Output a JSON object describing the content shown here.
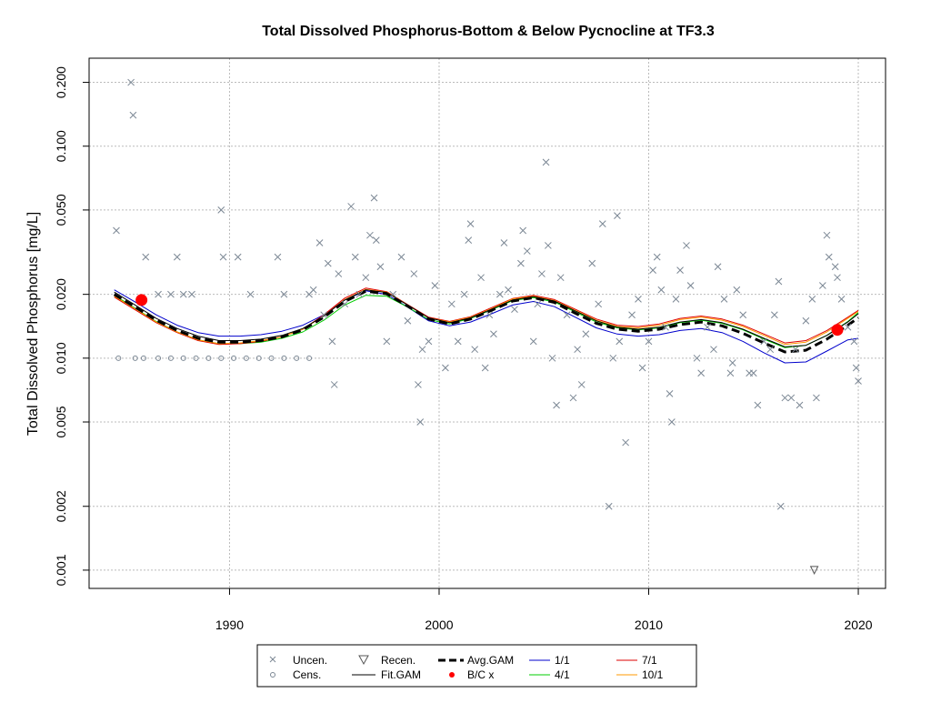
{
  "chart_data": {
    "type": "scatter",
    "title": "Total Dissolved Phosphorus-Bottom & Below Pycnocline at TF3.3",
    "xlabel": "",
    "ylabel": "Total Dissolved Phosphorus [mg/L]",
    "y_scale": "log",
    "xlim": [
      1983.3,
      2021.3
    ],
    "ylim": [
      0.00082,
      0.26
    ],
    "x_ticks": [
      1990,
      2000,
      2010,
      2020
    ],
    "x_tick_labels": [
      "1990",
      "2000",
      "2010",
      "2020"
    ],
    "y_ticks": [
      0.001,
      0.002,
      0.005,
      0.01,
      0.02,
      0.05,
      0.1,
      0.2
    ],
    "y_tick_labels": [
      "0.001",
      "0.002",
      "0.005",
      "0.010",
      "0.020",
      "0.050",
      "0.100",
      "0.200"
    ],
    "grid": true,
    "legend_placement": "bottom-center",
    "colors": {
      "uncensored": "#7b8794",
      "censored": "#7b8794",
      "recensored": "#7b8794",
      "fit_gam": "#000000",
      "avg_gam": "#000000",
      "bc_points": "#ff0000",
      "s_1_1": "#0000cc",
      "s_4_1": "#00cc00",
      "s_7_1": "#dd0000",
      "s_10_1": "#ff9900",
      "grid": "#bbbbbb"
    },
    "legend": {
      "uncen": "Uncen.",
      "cens": "Cens.",
      "recen": "Recen.",
      "fitgam": "Fit.GAM",
      "avggam": "Avg.GAM",
      "bc": "B/C x",
      "s11": "1/1",
      "s41": "4/1",
      "s71": "7/1",
      "s101": "10/1"
    },
    "series": [
      {
        "name": "Uncen.",
        "marker": "x",
        "points": [
          [
            1984.6,
            0.04
          ],
          [
            1985.3,
            0.2
          ],
          [
            1985.4,
            0.14
          ],
          [
            1986.0,
            0.03
          ],
          [
            1986.6,
            0.02
          ],
          [
            1987.2,
            0.02
          ],
          [
            1987.5,
            0.03
          ],
          [
            1987.8,
            0.02
          ],
          [
            1988.2,
            0.02
          ],
          [
            1989.6,
            0.05
          ],
          [
            1989.7,
            0.03
          ],
          [
            1990.4,
            0.03
          ],
          [
            1991.0,
            0.02
          ],
          [
            1992.3,
            0.03
          ],
          [
            1992.6,
            0.02
          ],
          [
            1993.8,
            0.02
          ],
          [
            1994.0,
            0.021
          ],
          [
            1994.3,
            0.035
          ],
          [
            1994.5,
            0.016
          ],
          [
            1994.7,
            0.028
          ],
          [
            1994.9,
            0.012
          ],
          [
            1995.0,
            0.0075
          ],
          [
            1995.2,
            0.025
          ],
          [
            1995.5,
            0.018
          ],
          [
            1995.8,
            0.052
          ],
          [
            1996.0,
            0.03
          ],
          [
            1996.2,
            0.02
          ],
          [
            1996.5,
            0.024
          ],
          [
            1996.7,
            0.038
          ],
          [
            1996.9,
            0.057
          ],
          [
            1997.0,
            0.036
          ],
          [
            1997.2,
            0.027
          ],
          [
            1997.5,
            0.012
          ],
          [
            1997.8,
            0.02
          ],
          [
            1998.2,
            0.03
          ],
          [
            1998.5,
            0.015
          ],
          [
            1998.8,
            0.025
          ],
          [
            1999.0,
            0.0075
          ],
          [
            1999.1,
            0.005
          ],
          [
            1999.2,
            0.011
          ],
          [
            1999.5,
            0.012
          ],
          [
            1999.8,
            0.022
          ],
          [
            2000.3,
            0.009
          ],
          [
            2000.6,
            0.018
          ],
          [
            2000.9,
            0.012
          ],
          [
            2001.2,
            0.02
          ],
          [
            2001.4,
            0.036
          ],
          [
            2001.5,
            0.043
          ],
          [
            2001.7,
            0.011
          ],
          [
            2002.0,
            0.024
          ],
          [
            2002.2,
            0.009
          ],
          [
            2002.4,
            0.016
          ],
          [
            2002.6,
            0.013
          ],
          [
            2002.9,
            0.02
          ],
          [
            2003.1,
            0.035
          ],
          [
            2003.3,
            0.021
          ],
          [
            2003.6,
            0.017
          ],
          [
            2003.9,
            0.028
          ],
          [
            2004.0,
            0.04
          ],
          [
            2004.2,
            0.032
          ],
          [
            2004.5,
            0.012
          ],
          [
            2004.7,
            0.018
          ],
          [
            2004.9,
            0.025
          ],
          [
            2005.1,
            0.084
          ],
          [
            2005.2,
            0.034
          ],
          [
            2005.4,
            0.01
          ],
          [
            2005.6,
            0.006
          ],
          [
            2005.8,
            0.024
          ],
          [
            2006.1,
            0.016
          ],
          [
            2006.4,
            0.0065
          ],
          [
            2006.6,
            0.011
          ],
          [
            2006.8,
            0.0075
          ],
          [
            2007.0,
            0.013
          ],
          [
            2007.3,
            0.028
          ],
          [
            2007.6,
            0.018
          ],
          [
            2007.8,
            0.043
          ],
          [
            2008.1,
            0.002
          ],
          [
            2008.3,
            0.01
          ],
          [
            2008.5,
            0.047
          ],
          [
            2008.6,
            0.012
          ],
          [
            2008.9,
            0.004
          ],
          [
            2009.2,
            0.016
          ],
          [
            2009.5,
            0.019
          ],
          [
            2009.7,
            0.009
          ],
          [
            2010.0,
            0.012
          ],
          [
            2010.2,
            0.026
          ],
          [
            2010.4,
            0.03
          ],
          [
            2010.6,
            0.021
          ],
          [
            2010.8,
            0.014
          ],
          [
            2011.0,
            0.0068
          ],
          [
            2011.1,
            0.005
          ],
          [
            2011.3,
            0.019
          ],
          [
            2011.5,
            0.026
          ],
          [
            2011.8,
            0.034
          ],
          [
            2012.0,
            0.022
          ],
          [
            2012.3,
            0.01
          ],
          [
            2012.5,
            0.0085
          ],
          [
            2012.8,
            0.014
          ],
          [
            2013.1,
            0.011
          ],
          [
            2013.3,
            0.027
          ],
          [
            2013.6,
            0.019
          ],
          [
            2013.9,
            0.0085
          ],
          [
            2014.0,
            0.0095
          ],
          [
            2014.2,
            0.021
          ],
          [
            2014.5,
            0.016
          ],
          [
            2014.8,
            0.0085
          ],
          [
            2015.0,
            0.0085
          ],
          [
            2015.2,
            0.006
          ],
          [
            2015.5,
            0.012
          ],
          [
            2015.8,
            0.011
          ],
          [
            2016.0,
            0.016
          ],
          [
            2016.2,
            0.023
          ],
          [
            2016.3,
            0.002
          ],
          [
            2016.5,
            0.0065
          ],
          [
            2016.8,
            0.0065
          ],
          [
            2017.0,
            0.011
          ],
          [
            2017.2,
            0.006
          ],
          [
            2017.5,
            0.015
          ],
          [
            2017.8,
            0.019
          ],
          [
            2018.0,
            0.0065
          ],
          [
            2018.3,
            0.022
          ],
          [
            2018.5,
            0.038
          ],
          [
            2018.6,
            0.03
          ],
          [
            2018.9,
            0.027
          ],
          [
            2019.0,
            0.024
          ],
          [
            2019.2,
            0.019
          ],
          [
            2019.5,
            0.014
          ],
          [
            2019.8,
            0.012
          ],
          [
            2019.9,
            0.009
          ],
          [
            2020.0,
            0.0078
          ]
        ]
      },
      {
        "name": "Cens.",
        "marker": "circle-open",
        "points": [
          [
            1984.7,
            0.01
          ],
          [
            1985.5,
            0.01
          ],
          [
            1985.9,
            0.01
          ],
          [
            1986.6,
            0.01
          ],
          [
            1987.2,
            0.01
          ],
          [
            1987.8,
            0.01
          ],
          [
            1988.4,
            0.01
          ],
          [
            1989.0,
            0.01
          ],
          [
            1989.6,
            0.01
          ],
          [
            1990.2,
            0.01
          ],
          [
            1990.8,
            0.01
          ],
          [
            1991.4,
            0.01
          ],
          [
            1992.0,
            0.01
          ],
          [
            1992.6,
            0.01
          ],
          [
            1993.2,
            0.01
          ],
          [
            1993.8,
            0.01
          ]
        ]
      },
      {
        "name": "Recen.",
        "marker": "triangle-down",
        "points": [
          [
            2017.9,
            0.001
          ]
        ]
      },
      {
        "name": "B/C x",
        "marker": "filled-circle",
        "points": [
          [
            1985.8,
            0.0188
          ],
          [
            2019.0,
            0.0136
          ]
        ]
      },
      {
        "name": "Fit.GAM",
        "x": [
          1984.5,
          1985.5,
          1986.5,
          1987.5,
          1988.5,
          1989.5,
          1990.5,
          1991.5,
          1992.5,
          1993.5,
          1994.5,
          1995.5,
          1996.5,
          1997.5,
          1998.5,
          1999.5,
          2000.5,
          2001.5,
          2002.5,
          2003.5,
          2004.5,
          2005.5,
          2006.5,
          2007.5,
          2008.5,
          2009.5,
          2010.5,
          2011.5,
          2012.5,
          2013.5,
          2014.5,
          2015.5,
          2016.5,
          2017.5,
          2018.5,
          2019.5,
          2020.0
        ],
        "values": [
          0.0205,
          0.0178,
          0.0154,
          0.0138,
          0.0127,
          0.0121,
          0.0121,
          0.0123,
          0.0128,
          0.0138,
          0.0158,
          0.0188,
          0.021,
          0.0204,
          0.0178,
          0.0155,
          0.0147,
          0.0155,
          0.017,
          0.0188,
          0.0195,
          0.0186,
          0.0167,
          0.015,
          0.014,
          0.0137,
          0.014,
          0.0148,
          0.0152,
          0.0147,
          0.0137,
          0.0124,
          0.0113,
          0.0115,
          0.0128,
          0.0148,
          0.0162
        ]
      },
      {
        "name": "Avg.GAM",
        "x": [
          1984.5,
          1985.5,
          1986.5,
          1987.5,
          1988.5,
          1989.5,
          1990.5,
          1991.5,
          1992.5,
          1993.5,
          1994.5,
          1995.5,
          1996.5,
          1997.5,
          1998.5,
          1999.5,
          2000.5,
          2001.5,
          2002.5,
          2003.5,
          2004.5,
          2005.5,
          2006.5,
          2007.5,
          2008.5,
          2009.5,
          2010.5,
          2011.5,
          2012.5,
          2013.5,
          2014.5,
          2015.5,
          2016.5,
          2017.5,
          2018.5,
          2019.5,
          2020.0
        ],
        "values": [
          0.02,
          0.0174,
          0.0151,
          0.0135,
          0.0124,
          0.0119,
          0.0119,
          0.0121,
          0.0126,
          0.0136,
          0.0156,
          0.0185,
          0.0207,
          0.0201,
          0.0176,
          0.0153,
          0.0145,
          0.0153,
          0.0168,
          0.0186,
          0.0193,
          0.0183,
          0.0163,
          0.0146,
          0.0137,
          0.0134,
          0.0137,
          0.0144,
          0.0148,
          0.0142,
          0.0131,
          0.0118,
          0.0107,
          0.0109,
          0.0123,
          0.0143,
          0.0155
        ]
      },
      {
        "name": "1/1",
        "x": [
          1984.5,
          1985.5,
          1986.5,
          1987.5,
          1988.5,
          1989.5,
          1990.5,
          1991.5,
          1992.5,
          1993.5,
          1994.5,
          1995.5,
          1996.5,
          1997.5,
          1998.5,
          1999.5,
          2000.5,
          2001.5,
          2002.5,
          2003.5,
          2004.5,
          2005.5,
          2006.5,
          2007.5,
          2008.5,
          2009.5,
          2010.5,
          2011.5,
          2012.5,
          2013.5,
          2014.5,
          2015.5,
          2016.5,
          2017.5,
          2018.5,
          2019.5,
          2020.0
        ],
        "values": [
          0.021,
          0.0184,
          0.016,
          0.0143,
          0.0132,
          0.0127,
          0.0127,
          0.0129,
          0.0134,
          0.0143,
          0.016,
          0.0188,
          0.0208,
          0.02,
          0.0174,
          0.015,
          0.0142,
          0.0148,
          0.0162,
          0.0178,
          0.0185,
          0.0175,
          0.0156,
          0.0139,
          0.013,
          0.0127,
          0.0129,
          0.0135,
          0.0138,
          0.0132,
          0.012,
          0.0106,
          0.0095,
          0.0096,
          0.0108,
          0.0122,
          0.0124
        ]
      },
      {
        "name": "4/1",
        "x": [
          1984.5,
          1985.5,
          1986.5,
          1987.5,
          1988.5,
          1989.5,
          1990.5,
          1991.5,
          1992.5,
          1993.5,
          1994.5,
          1995.5,
          1996.5,
          1997.5,
          1998.5,
          1999.5,
          2000.5,
          2001.5,
          2002.5,
          2003.5,
          2004.5,
          2005.5,
          2006.5,
          2007.5,
          2008.5,
          2009.5,
          2010.5,
          2011.5,
          2012.5,
          2013.5,
          2014.5,
          2015.5,
          2016.5,
          2017.5,
          2018.5,
          2019.5,
          2020.0
        ],
        "values": [
          0.0198,
          0.0172,
          0.0149,
          0.0133,
          0.0122,
          0.0117,
          0.0117,
          0.0119,
          0.0124,
          0.0133,
          0.0151,
          0.0178,
          0.0198,
          0.0196,
          0.0174,
          0.0152,
          0.0145,
          0.0154,
          0.0169,
          0.0187,
          0.0193,
          0.0184,
          0.0165,
          0.0148,
          0.0139,
          0.0136,
          0.0139,
          0.0147,
          0.0151,
          0.0146,
          0.0136,
          0.0123,
          0.0112,
          0.0115,
          0.0128,
          0.0149,
          0.0164
        ]
      },
      {
        "name": "7/1",
        "x": [
          1984.5,
          1985.5,
          1986.5,
          1987.5,
          1988.5,
          1989.5,
          1990.5,
          1991.5,
          1992.5,
          1993.5,
          1994.5,
          1995.5,
          1996.5,
          1997.5,
          1998.5,
          1999.5,
          2000.5,
          2001.5,
          2002.5,
          2003.5,
          2004.5,
          2005.5,
          2006.5,
          2007.5,
          2008.5,
          2009.5,
          2010.5,
          2011.5,
          2012.5,
          2013.5,
          2014.5,
          2015.5,
          2016.5,
          2017.5,
          2018.5,
          2019.5,
          2020.0
        ],
        "values": [
          0.0194,
          0.0169,
          0.0147,
          0.0132,
          0.0121,
          0.0116,
          0.0117,
          0.012,
          0.0126,
          0.0137,
          0.016,
          0.0192,
          0.0214,
          0.0206,
          0.0179,
          0.0156,
          0.0149,
          0.0157,
          0.0173,
          0.0191,
          0.0198,
          0.0189,
          0.017,
          0.0153,
          0.0143,
          0.0141,
          0.0145,
          0.0154,
          0.0158,
          0.0153,
          0.0143,
          0.013,
          0.0118,
          0.0121,
          0.0135,
          0.0156,
          0.0168
        ]
      },
      {
        "name": "10/1",
        "x": [
          1984.5,
          1985.5,
          1986.5,
          1987.5,
          1988.5,
          1989.5,
          1990.5,
          1991.5,
          1992.5,
          1993.5,
          1994.5,
          1995.5,
          1996.5,
          1997.5,
          1998.5,
          1999.5,
          2000.5,
          2001.5,
          2002.5,
          2003.5,
          2004.5,
          2005.5,
          2006.5,
          2007.5,
          2008.5,
          2009.5,
          2010.5,
          2011.5,
          2012.5,
          2013.5,
          2014.5,
          2015.5,
          2016.5,
          2017.5,
          2018.5,
          2019.5,
          2020.0
        ],
        "values": [
          0.0196,
          0.0171,
          0.0148,
          0.0133,
          0.0122,
          0.0117,
          0.0118,
          0.0121,
          0.0126,
          0.0137,
          0.0158,
          0.0189,
          0.0211,
          0.0205,
          0.0178,
          0.0155,
          0.0148,
          0.0156,
          0.0171,
          0.019,
          0.0196,
          0.0187,
          0.0168,
          0.0151,
          0.0141,
          0.0139,
          0.0143,
          0.0152,
          0.0156,
          0.0151,
          0.0141,
          0.0128,
          0.0116,
          0.0119,
          0.0133,
          0.0154,
          0.0166
        ]
      }
    ]
  }
}
